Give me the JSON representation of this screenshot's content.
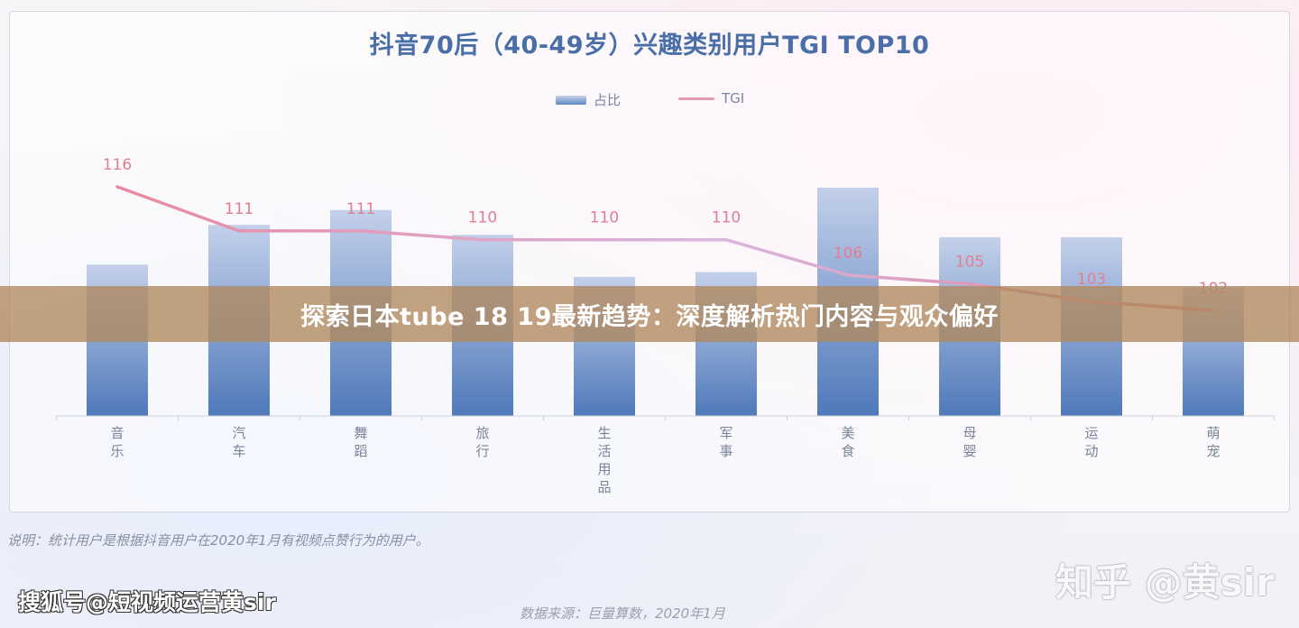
{
  "chart_data": {
    "type": "bar",
    "title": "抖音70后（40-49岁）兴趣类别用户TGI TOP10",
    "categories": [
      "音乐",
      "汽车",
      "舞蹈",
      "旅行",
      "生活用品",
      "军事",
      "美食",
      "母婴",
      "运动",
      "萌宠"
    ],
    "series": [
      {
        "name": "占比",
        "type": "bar",
        "values": [
          0.61,
          0.77,
          0.83,
          0.73,
          0.56,
          0.58,
          0.92,
          0.72,
          0.72,
          0.52
        ]
      },
      {
        "name": "TGI",
        "type": "line",
        "values": [
          116,
          111,
          111,
          110,
          110,
          110,
          106,
          105,
          103,
          102
        ]
      }
    ],
    "legend": "top-center",
    "grid": false,
    "colors": {
      "bar_top": "#c3d0ea",
      "bar_bottom": "#4f79ba",
      "line": "#e29bb4",
      "line_label": "#e07f92"
    }
  },
  "note": "说明：统计用户是根据抖音用户在2020年1月有视频点赞行为的用户。",
  "source": "数据来源：巨量算数，2020年1月",
  "banner": {
    "title": "探索日本tube 18 19最新趋势：深度解析热门内容与观众偏好"
  },
  "watermarks": {
    "right": "知乎 @黄sir",
    "left": "搜狐号@短视频运营黄sir"
  }
}
